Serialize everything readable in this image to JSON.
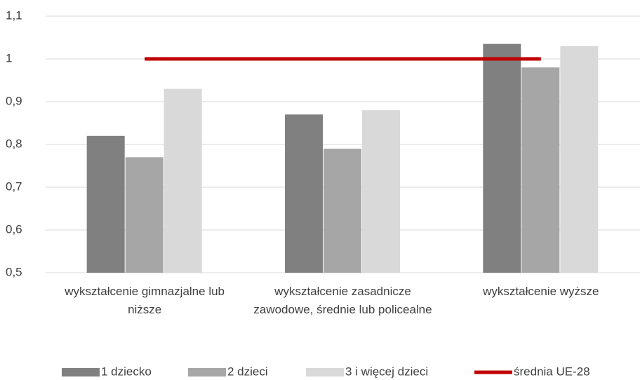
{
  "chart_data": {
    "type": "bar",
    "categories": [
      "wykształcenie gimnazjalne lub niższe",
      "wykształcenie zasadnicze zawodowe, średnie lub policealne",
      "wykształcenie wyższe"
    ],
    "series": [
      {
        "name": "1 dziecko",
        "color": "#808080",
        "values": [
          0.82,
          0.87,
          1.035
        ]
      },
      {
        "name": "2 dzieci",
        "color": "#a6a6a6",
        "values": [
          0.77,
          0.79,
          0.98
        ]
      },
      {
        "name": "3 i więcej dzieci",
        "color": "#d9d9d9",
        "values": [
          0.93,
          0.88,
          1.03
        ]
      },
      {
        "name": "średnia UE-28",
        "color": "#c00000",
        "type": "line",
        "values": [
          1,
          1,
          1
        ]
      }
    ],
    "ylim": [
      0.5,
      1.1
    ],
    "yticks": [
      {
        "value": 0.5,
        "label": "0,5"
      },
      {
        "value": 0.6,
        "label": "0,6"
      },
      {
        "value": 0.7,
        "label": "0,7"
      },
      {
        "value": 0.8,
        "label": "0,8"
      },
      {
        "value": 0.9,
        "label": "0,9"
      },
      {
        "value": 1,
        "label": "1"
      },
      {
        "value": 1.1,
        "label": "1,1"
      }
    ],
    "grid": true,
    "legend": "bottom"
  }
}
